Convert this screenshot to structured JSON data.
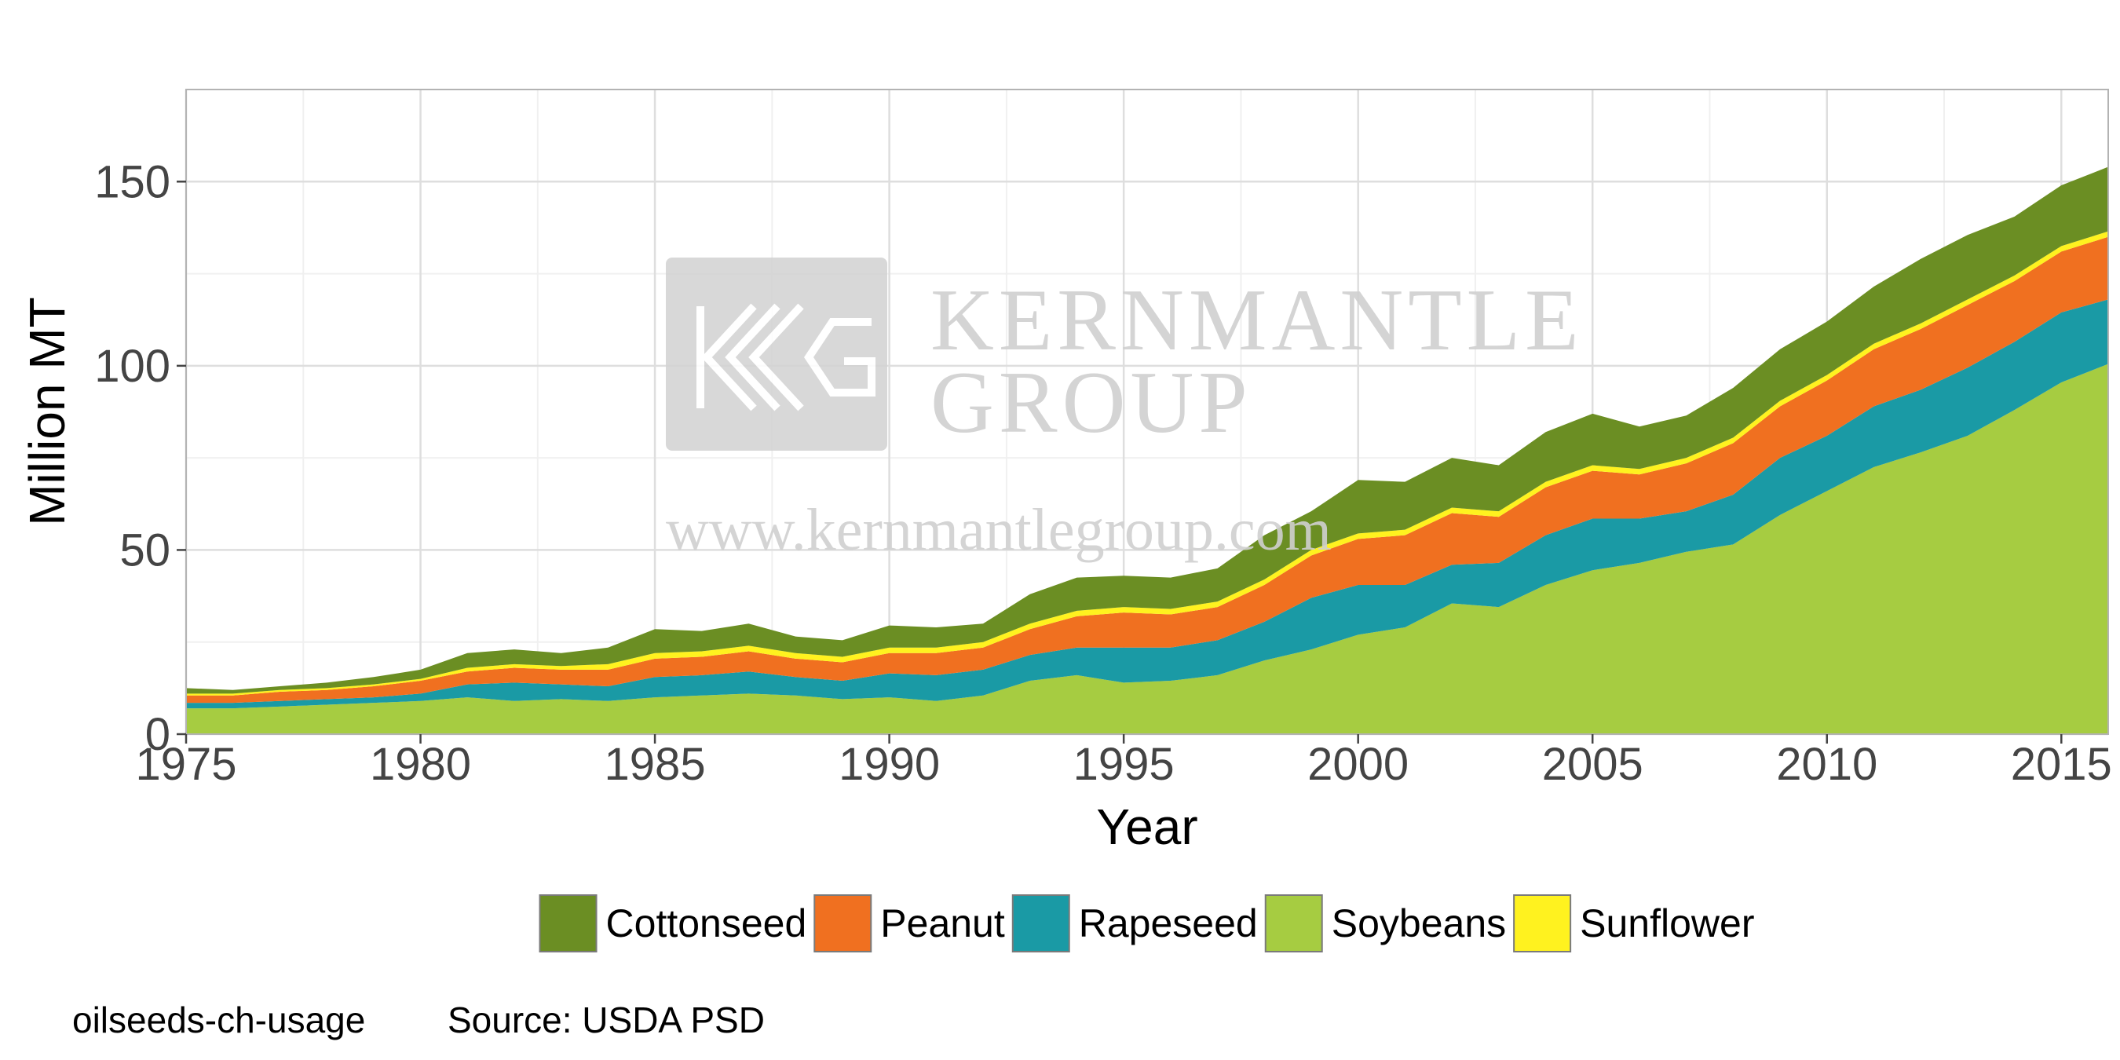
{
  "chart_data": {
    "type": "area",
    "stacked": true,
    "xlabel": "Year",
    "ylabel": "Million MT",
    "xlim": [
      1975,
      2016
    ],
    "ylim": [
      0,
      175
    ],
    "x_ticks": [
      1975,
      1980,
      1985,
      1990,
      1995,
      2000,
      2005,
      2010,
      2015
    ],
    "y_ticks": [
      0,
      50,
      100,
      150
    ],
    "grid": true,
    "legend": "bottom",
    "x": [
      1975,
      1976,
      1977,
      1978,
      1979,
      1980,
      1981,
      1982,
      1983,
      1984,
      1985,
      1986,
      1987,
      1988,
      1989,
      1990,
      1991,
      1992,
      1993,
      1994,
      1995,
      1996,
      1997,
      1998,
      1999,
      2000,
      2001,
      2002,
      2003,
      2004,
      2005,
      2006,
      2007,
      2008,
      2009,
      2010,
      2011,
      2012,
      2013,
      2014,
      2015,
      2016
    ],
    "series": [
      {
        "name": "Soybeans",
        "color": "#a6cc41",
        "values": [
          7,
          7,
          7.5,
          8,
          8.5,
          9,
          10,
          9,
          9.5,
          9,
          10,
          10.5,
          11,
          10.5,
          9.5,
          10,
          9,
          10.5,
          14.5,
          16,
          14,
          14.5,
          16,
          20,
          23,
          27,
          29,
          35.5,
          34.5,
          40.5,
          44.5,
          46.5,
          49.5,
          51.5,
          59.5,
          66,
          72.5,
          76.5,
          81,
          88,
          95.5,
          100.5
        ]
      },
      {
        "name": "Rapeseed",
        "color": "#1a9aa5",
        "values": [
          1.5,
          1.5,
          1.5,
          1.5,
          1.5,
          2,
          3.5,
          5,
          4,
          4,
          5.5,
          5.5,
          6,
          5,
          5,
          6.5,
          7,
          7,
          7,
          7.5,
          9.5,
          9,
          9.5,
          10.5,
          14,
          13.5,
          11.5,
          10.5,
          12,
          13.5,
          14,
          12,
          11,
          13.5,
          15.5,
          15,
          16.5,
          17,
          18.5,
          18.5,
          19,
          17.5
        ]
      },
      {
        "name": "Peanut",
        "color": "#f07020",
        "values": [
          2,
          2,
          2.5,
          2.5,
          3,
          3.5,
          3.5,
          4,
          4,
          4.5,
          5,
          5,
          5.5,
          5,
          5,
          5.5,
          6,
          6,
          7,
          8.5,
          9.5,
          9,
          9,
          10,
          11.5,
          12.5,
          13.5,
          14,
          12.5,
          13,
          13,
          12,
          13,
          14,
          14,
          15,
          15.5,
          16.5,
          17,
          16.5,
          16.5,
          17
        ]
      },
      {
        "name": "Sunflower",
        "color": "#fff21f",
        "values": [
          0.5,
          0.5,
          0.5,
          0.5,
          0.5,
          0.5,
          1,
          1,
          1,
          1.5,
          1.5,
          1.5,
          1.5,
          1.5,
          1.5,
          1.5,
          1.5,
          1.5,
          1.5,
          1.5,
          1.5,
          1.5,
          1.5,
          1.5,
          1.5,
          1.5,
          1.5,
          1.5,
          1.5,
          1.5,
          1.5,
          1.5,
          1.5,
          1.5,
          1.5,
          1.5,
          1.5,
          1.5,
          1.5,
          1.5,
          1.5,
          1.5
        ]
      },
      {
        "name": "Cottonseed",
        "color": "#6b8e23",
        "values": [
          1.5,
          1,
          1,
          1.5,
          2,
          2.5,
          4,
          4,
          3.5,
          4.5,
          6.5,
          5.5,
          6,
          4.5,
          4.5,
          6,
          5.5,
          5,
          8,
          9,
          8.5,
          8.5,
          9,
          12,
          10.5,
          14.5,
          13,
          13.5,
          12.5,
          13.5,
          14,
          11.5,
          11.5,
          13.5,
          14,
          14.5,
          15.5,
          17.5,
          17.5,
          16,
          16.5,
          17.5
        ]
      }
    ]
  },
  "legend_items": [
    {
      "label": "Cottonseed",
      "color": "#6b8e23"
    },
    {
      "label": "Peanut",
      "color": "#f07020"
    },
    {
      "label": "Rapeseed",
      "color": "#1a9aa5"
    },
    {
      "label": "Soybeans",
      "color": "#a6cc41"
    },
    {
      "label": "Sunflower",
      "color": "#fff21f"
    }
  ],
  "watermark": {
    "line1": "KERNMANTLE",
    "line2": "GROUP",
    "url": "www.kernmantlegroup.com"
  },
  "footer": {
    "chart_id": "oilseeds-ch-usage",
    "source": "Source: USDA PSD"
  }
}
